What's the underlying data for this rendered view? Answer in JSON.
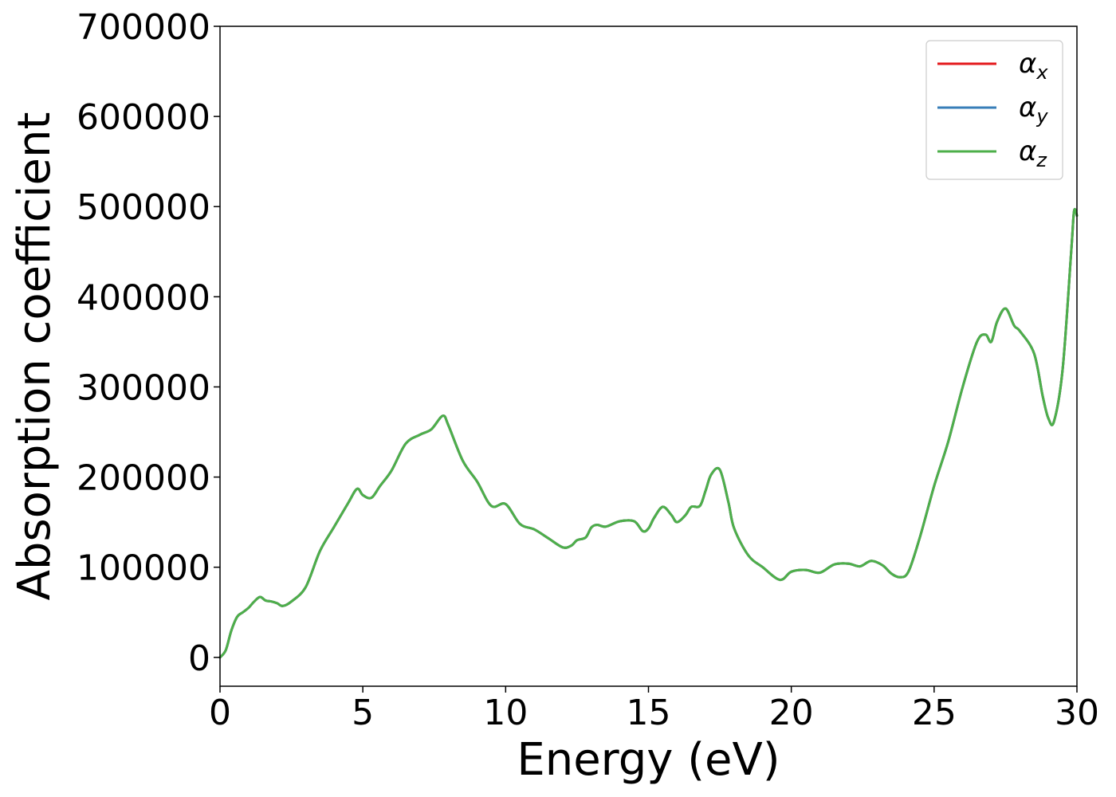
{
  "chart_data": {
    "type": "line",
    "title": "",
    "xlabel": "Energy (eV)",
    "ylabel": "Absorption coefficient",
    "xlim": [
      0,
      30
    ],
    "ylim": [
      -32000,
      700000
    ],
    "xticks": [
      "0",
      "5",
      "10",
      "15",
      "20",
      "25",
      "30"
    ],
    "yticks": [
      "0",
      "100000",
      "200000",
      "300000",
      "400000",
      "500000",
      "600000",
      "700000"
    ],
    "grid": false,
    "legend_position": "top-right",
    "legend": [
      {
        "base": "α",
        "sub": "x",
        "color": "#e41a1c"
      },
      {
        "base": "α",
        "sub": "y",
        "color": "#377eb8"
      },
      {
        "base": "α",
        "sub": "z",
        "color": "#4daf4a"
      }
    ],
    "x": [
      0,
      0.2,
      0.4,
      0.6,
      0.8,
      1.0,
      1.2,
      1.4,
      1.6,
      1.8,
      2.0,
      2.2,
      2.5,
      3.0,
      3.5,
      4.0,
      4.5,
      4.8,
      5.0,
      5.3,
      5.6,
      6.0,
      6.5,
      7.0,
      7.4,
      7.8,
      8.0,
      8.5,
      9.0,
      9.5,
      10.0,
      10.5,
      11.0,
      11.5,
      12.0,
      12.3,
      12.5,
      12.8,
      13.0,
      13.2,
      13.5,
      14.0,
      14.5,
      14.8,
      15.0,
      15.2,
      15.5,
      15.8,
      16.0,
      16.3,
      16.5,
      16.8,
      17.0,
      17.2,
      17.5,
      17.8,
      18.0,
      18.5,
      19.0,
      19.6,
      20.0,
      20.5,
      21.0,
      21.5,
      22.0,
      22.4,
      22.8,
      23.2,
      23.5,
      23.8,
      24.1,
      24.5,
      25.0,
      25.5,
      26.0,
      26.5,
      26.8,
      27.0,
      27.2,
      27.5,
      27.8,
      28.0,
      28.5,
      28.8,
      29.0,
      29.2,
      29.5,
      29.8,
      29.9,
      30.0
    ],
    "series": [
      {
        "name": "α_x",
        "color": "#e41a1c",
        "values": [
          0,
          8000,
          30000,
          45000,
          50000,
          55000,
          62000,
          67000,
          63000,
          62000,
          60000,
          57000,
          62000,
          78000,
          118000,
          145000,
          172000,
          187000,
          180000,
          177000,
          190000,
          207000,
          237000,
          247000,
          253000,
          268000,
          257000,
          218000,
          195000,
          168000,
          170000,
          148000,
          142000,
          132000,
          122000,
          124000,
          130000,
          133000,
          144000,
          147000,
          145000,
          151000,
          151000,
          140000,
          143000,
          155000,
          167000,
          158000,
          150000,
          158000,
          167000,
          168000,
          185000,
          203000,
          208000,
          172000,
          143000,
          113000,
          100000,
          86000,
          95000,
          97000,
          94000,
          103000,
          104000,
          101000,
          107000,
          102000,
          93000,
          89000,
          95000,
          133000,
          190000,
          240000,
          300000,
          350000,
          358000,
          350000,
          372000,
          387000,
          368000,
          362000,
          337000,
          290000,
          265000,
          262000,
          320000,
          450000,
          495000,
          490000
        ]
      },
      {
        "name": "α_y",
        "color": "#377eb8",
        "values": [
          0,
          8000,
          30000,
          45000,
          50000,
          55000,
          62000,
          67000,
          63000,
          62000,
          60000,
          57000,
          62000,
          78000,
          118000,
          145000,
          172000,
          187000,
          180000,
          177000,
          190000,
          207000,
          237000,
          247000,
          253000,
          268000,
          257000,
          218000,
          195000,
          168000,
          170000,
          148000,
          142000,
          132000,
          122000,
          124000,
          130000,
          133000,
          144000,
          147000,
          145000,
          151000,
          151000,
          140000,
          143000,
          155000,
          167000,
          158000,
          150000,
          158000,
          167000,
          168000,
          185000,
          203000,
          208000,
          172000,
          143000,
          113000,
          100000,
          86000,
          95000,
          97000,
          94000,
          103000,
          104000,
          101000,
          107000,
          102000,
          93000,
          89000,
          95000,
          133000,
          190000,
          240000,
          300000,
          350000,
          358000,
          350000,
          372000,
          387000,
          368000,
          362000,
          337000,
          290000,
          265000,
          262000,
          320000,
          450000,
          495000,
          490000
        ]
      },
      {
        "name": "α_z",
        "color": "#4daf4a",
        "values": [
          0,
          8000,
          30000,
          45000,
          50000,
          55000,
          62000,
          67000,
          63000,
          62000,
          60000,
          57000,
          62000,
          78000,
          118000,
          145000,
          172000,
          187000,
          180000,
          177000,
          190000,
          207000,
          237000,
          247000,
          253000,
          268000,
          257000,
          218000,
          195000,
          168000,
          170000,
          148000,
          142000,
          132000,
          122000,
          124000,
          130000,
          133000,
          144000,
          147000,
          145000,
          151000,
          151000,
          140000,
          143000,
          155000,
          167000,
          158000,
          150000,
          158000,
          167000,
          168000,
          185000,
          203000,
          208000,
          172000,
          143000,
          113000,
          100000,
          86000,
          95000,
          97000,
          94000,
          103000,
          104000,
          101000,
          107000,
          102000,
          93000,
          89000,
          95000,
          133000,
          190000,
          240000,
          300000,
          350000,
          358000,
          350000,
          372000,
          387000,
          368000,
          362000,
          337000,
          290000,
          265000,
          262000,
          320000,
          450000,
          495000,
          490000
        ]
      }
    ]
  }
}
